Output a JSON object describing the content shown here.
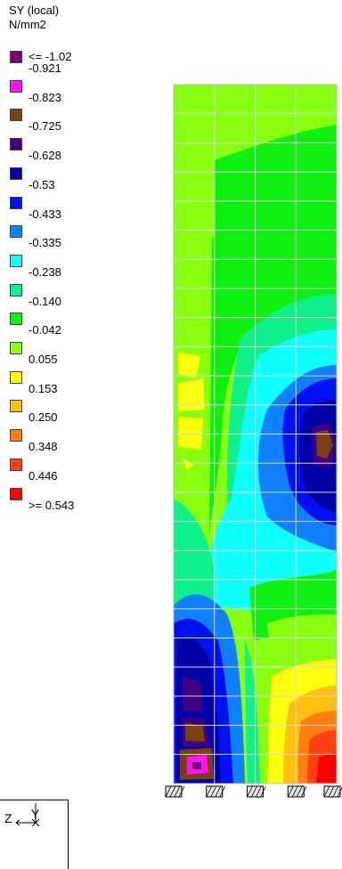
{
  "legend": {
    "title_line1": "SY (local)",
    "title_line2": "N/mm2",
    "first_label": "<= -1.02",
    "entries": [
      {
        "label": "-0.921",
        "color": "#7a0070"
      },
      {
        "label": "-0.823",
        "color": "#ff10ff"
      },
      {
        "label": "-0.725",
        "color": "#7a4010"
      },
      {
        "label": "-0.628",
        "color": "#400080"
      },
      {
        "label": "-0.53",
        "color": "#0000a8"
      },
      {
        "label": "-0.433",
        "color": "#0010f0"
      },
      {
        "label": "-0.335",
        "color": "#1080ff"
      },
      {
        "label": "-0.238",
        "color": "#10ffff"
      },
      {
        "label": "-0.140",
        "color": "#10f088"
      },
      {
        "label": "-0.042",
        "color": "#10f010"
      },
      {
        "label": "0.055",
        "color": "#88ff10"
      },
      {
        "label": "0.153",
        "color": "#ffff10"
      },
      {
        "label": "0.250",
        "color": "#ffc010"
      },
      {
        "label": "0.348",
        "color": "#ff8010"
      },
      {
        "label": "0.446",
        "color": "#ff4010"
      },
      {
        "label": ">= 0.543",
        "color": "#ff0000"
      }
    ]
  },
  "axes": {
    "y_label": "Y",
    "z_label": "Z"
  }
}
